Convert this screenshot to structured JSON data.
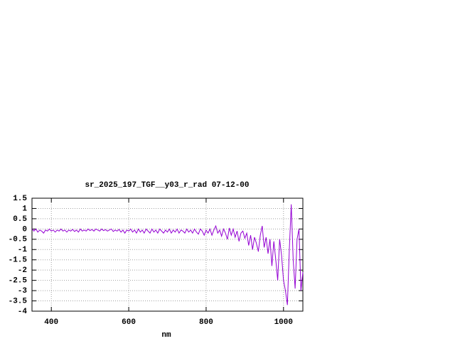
{
  "chart_data": {
    "type": "line",
    "title": "sr_2025_197_TGF__y03_r_rad 07-12-00",
    "x_label": "nm",
    "x": [
      350,
      355,
      360,
      365,
      370,
      375,
      380,
      385,
      390,
      395,
      400,
      405,
      410,
      415,
      420,
      425,
      430,
      435,
      440,
      445,
      450,
      455,
      460,
      465,
      470,
      475,
      480,
      485,
      490,
      495,
      500,
      505,
      510,
      515,
      520,
      525,
      530,
      535,
      540,
      545,
      550,
      555,
      560,
      565,
      570,
      575,
      580,
      585,
      590,
      595,
      600,
      605,
      610,
      615,
      620,
      625,
      630,
      635,
      640,
      645,
      650,
      655,
      660,
      665,
      670,
      675,
      680,
      685,
      690,
      695,
      700,
      705,
      710,
      715,
      720,
      725,
      730,
      735,
      740,
      745,
      750,
      755,
      760,
      765,
      770,
      775,
      780,
      785,
      790,
      795,
      800,
      805,
      810,
      815,
      820,
      825,
      830,
      835,
      840,
      845,
      850,
      855,
      860,
      865,
      870,
      875,
      880,
      885,
      890,
      895,
      900,
      905,
      910,
      915,
      920,
      925,
      930,
      935,
      940,
      945,
      950,
      955,
      960,
      965,
      970,
      975,
      980,
      985,
      990,
      995,
      1000,
      1005,
      1010,
      1015,
      1020,
      1025,
      1030,
      1035,
      1040,
      1045,
      1050
    ],
    "series": [
      {
        "color": "#9400d3",
        "values": [
          0.0,
          -0.1,
          0.0,
          -0.15,
          -0.05,
          -0.1,
          -0.2,
          -0.05,
          -0.1,
          0.0,
          -0.1,
          -0.05,
          -0.15,
          -0.05,
          -0.1,
          0.0,
          -0.1,
          -0.05,
          -0.15,
          -0.05,
          -0.1,
          -0.02,
          -0.12,
          -0.05,
          -0.15,
          0.0,
          -0.1,
          -0.05,
          -0.1,
          0.0,
          -0.08,
          -0.02,
          -0.1,
          0.0,
          -0.05,
          -0.1,
          0.0,
          -0.08,
          -0.03,
          -0.1,
          -0.05,
          0.0,
          -0.12,
          -0.05,
          -0.1,
          -0.02,
          -0.15,
          -0.05,
          -0.2,
          -0.05,
          -0.1,
          0.0,
          -0.15,
          -0.05,
          -0.2,
          0.0,
          -0.15,
          -0.05,
          -0.2,
          0.0,
          -0.1,
          -0.2,
          0.0,
          -0.15,
          -0.05,
          -0.2,
          0.0,
          -0.1,
          -0.2,
          -0.05,
          -0.15,
          0.0,
          -0.2,
          -0.05,
          -0.15,
          0.0,
          -0.2,
          -0.05,
          -0.1,
          -0.2,
          0.0,
          -0.15,
          -0.05,
          -0.2,
          0.0,
          -0.15,
          -0.25,
          0.0,
          -0.1,
          -0.3,
          -0.05,
          -0.2,
          0.0,
          -0.3,
          -0.05,
          0.15,
          -0.2,
          -0.05,
          -0.35,
          0.0,
          -0.2,
          -0.5,
          0.05,
          -0.3,
          0.0,
          -0.4,
          -0.1,
          -0.6,
          -0.2,
          -0.1,
          -0.45,
          -0.2,
          -0.8,
          -0.3,
          -1.0,
          -0.4,
          -0.7,
          -1.1,
          -0.3,
          0.15,
          -0.9,
          -0.4,
          -1.2,
          -0.5,
          -1.8,
          -0.6,
          -1.5,
          -2.5,
          -0.5,
          -1.3,
          -2.5,
          -3.0,
          -3.7,
          -1.0,
          1.2,
          -1.5,
          -2.9,
          -0.5,
          0.0,
          -3.0,
          -2.1
        ]
      }
    ],
    "xlim": [
      350,
      1050
    ],
    "xticks": [
      400,
      600,
      800,
      1000
    ],
    "ylim": [
      -4,
      1.5
    ],
    "yticks": [
      1.5,
      1,
      0.5,
      0,
      -0.5,
      -1,
      -1.5,
      -2,
      -2.5,
      -3,
      -3.5,
      -4
    ],
    "grid": true
  }
}
